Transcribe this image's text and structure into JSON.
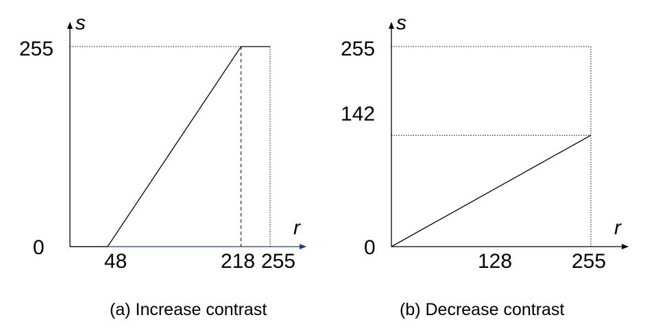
{
  "chart_data": [
    {
      "type": "line",
      "caption": "(a) Increase contrast",
      "xlabel": "r",
      "ylabel": "s",
      "xlim": [
        0,
        255
      ],
      "ylim": [
        0,
        255
      ],
      "x": [
        0,
        48,
        218,
        255
      ],
      "series": [
        {
          "values": [
            0,
            0,
            255,
            255
          ]
        }
      ],
      "x_ticks": [
        "48",
        "218",
        "255"
      ],
      "y_ticks": [
        "0",
        "255"
      ],
      "guides": {
        "dashed_vertical_at_x": 218,
        "dotted_horizontal_at_y": 255,
        "dotted_vertical_at_x": 255
      },
      "x_axis_color": "#1f3a93"
    },
    {
      "type": "line",
      "caption": "(b) Decrease contrast",
      "xlabel": "r",
      "ylabel": "s",
      "xlim": [
        0,
        255
      ],
      "ylim": [
        0,
        255
      ],
      "x": [
        0,
        255
      ],
      "series": [
        {
          "values": [
            0,
            142
          ]
        }
      ],
      "x_ticks": [
        "128",
        "255"
      ],
      "y_ticks": [
        "0",
        "142",
        "255"
      ],
      "guides": {
        "dotted_horizontal_at_y": [
          142,
          255
        ],
        "dotted_vertical_at_x": 255
      },
      "x_axis_color": "#000000"
    }
  ]
}
